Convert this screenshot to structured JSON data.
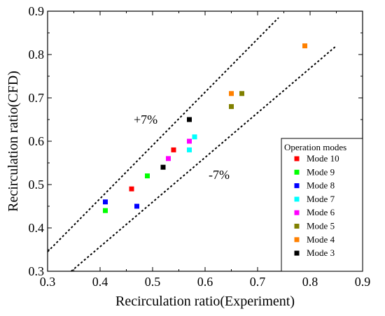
{
  "chart_data": {
    "type": "scatter",
    "title": "",
    "xlabel": "Recirculation ratio(Experiment)",
    "ylabel": "Recirculation ratio(CFD)",
    "xlim": [
      0.3,
      0.9
    ],
    "ylim": [
      0.3,
      0.9
    ],
    "xticks": [
      "0.3",
      "0.4",
      "0.5",
      "0.6",
      "0.7",
      "0.8",
      "0.9"
    ],
    "yticks": [
      "0.3",
      "0.4",
      "0.5",
      "0.6",
      "0.7",
      "0.8",
      "0.9"
    ],
    "grid": false,
    "legend_title": "Operation modes",
    "legend_position": "bottom-right",
    "series": [
      {
        "name": "Mode 10",
        "color": "#ff0000",
        "points": [
          [
            0.46,
            0.49
          ],
          [
            0.54,
            0.58
          ]
        ]
      },
      {
        "name": "Mode 9",
        "color": "#00ff00",
        "points": [
          [
            0.41,
            0.44
          ],
          [
            0.49,
            0.52
          ]
        ]
      },
      {
        "name": "Mode 8",
        "color": "#0000ff",
        "points": [
          [
            0.41,
            0.46
          ],
          [
            0.47,
            0.45
          ]
        ]
      },
      {
        "name": "Mode 7",
        "color": "#00ffff",
        "points": [
          [
            0.57,
            0.58
          ],
          [
            0.58,
            0.61
          ]
        ]
      },
      {
        "name": "Mode 6",
        "color": "#ff00ff",
        "points": [
          [
            0.53,
            0.56
          ],
          [
            0.57,
            0.6
          ]
        ]
      },
      {
        "name": "Mode 5",
        "color": "#808000",
        "points": [
          [
            0.65,
            0.68
          ],
          [
            0.67,
            0.71
          ]
        ]
      },
      {
        "name": "Mode 4",
        "color": "#ff8000",
        "points": [
          [
            0.65,
            0.71
          ],
          [
            0.79,
            0.82
          ]
        ]
      },
      {
        "name": "Mode 3",
        "color": "#000000",
        "points": [
          [
            0.52,
            0.54
          ],
          [
            0.57,
            0.65
          ]
        ]
      }
    ],
    "reference_lines": [
      {
        "label": "+7%",
        "points": [
          [
            0.3,
            0.345
          ],
          [
            0.74,
            0.885
          ]
        ]
      },
      {
        "label": "-7%",
        "points": [
          [
            0.345,
            0.3
          ],
          [
            0.85,
            0.82
          ]
        ]
      }
    ]
  }
}
